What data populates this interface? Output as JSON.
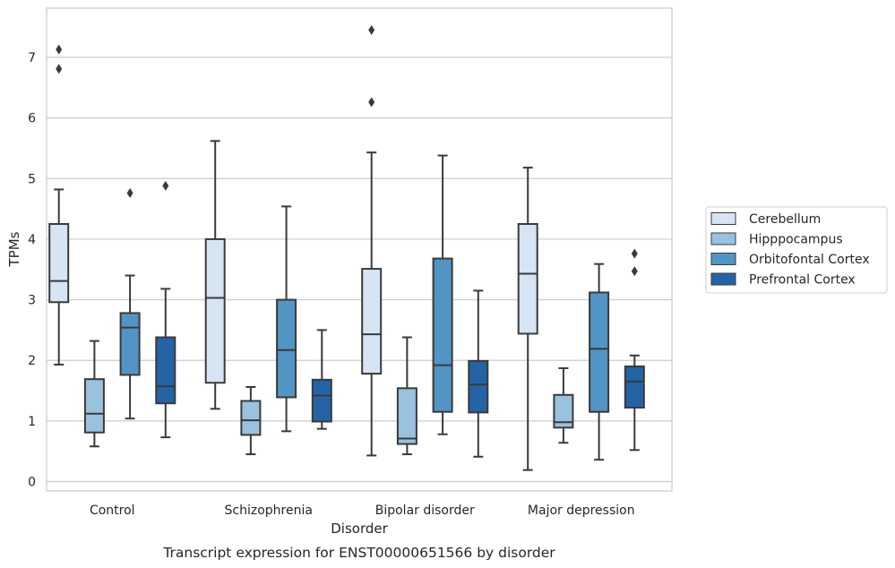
{
  "caption": "Transcript expression for ENST00000651566 by disorder",
  "chart_data": {
    "type": "box",
    "title": "",
    "xlabel": "Disorder",
    "ylabel": "TPMs",
    "ylim": [
      -0.15,
      7.8
    ],
    "yticks": [
      "0",
      "1",
      "2",
      "3",
      "4",
      "5",
      "6",
      "7"
    ],
    "grid": "horizontal",
    "legend_position": "right",
    "categories": [
      "Control",
      "Schizophrenia",
      "Bipolar disorder",
      "Major depression"
    ],
    "series": [
      {
        "name": "Cerebellum",
        "color": "#d6e4f3",
        "boxes": [
          {
            "whisker_low": 1.93,
            "q1": 2.96,
            "median": 3.31,
            "q3": 4.25,
            "whisker_high": 4.82,
            "outliers": [
              6.81,
              7.13
            ]
          },
          {
            "whisker_low": 1.2,
            "q1": 1.63,
            "median": 3.03,
            "q3": 4.0,
            "whisker_high": 5.62,
            "outliers": []
          },
          {
            "whisker_low": 0.43,
            "q1": 1.78,
            "median": 2.43,
            "q3": 3.51,
            "whisker_high": 5.43,
            "outliers": [
              6.26,
              7.45
            ]
          },
          {
            "whisker_low": 0.19,
            "q1": 2.44,
            "median": 3.43,
            "q3": 4.25,
            "whisker_high": 5.18,
            "outliers": []
          }
        ]
      },
      {
        "name": "Hipppocampus",
        "color": "#9ac1dd",
        "boxes": [
          {
            "whisker_low": 0.58,
            "q1": 0.81,
            "median": 1.12,
            "q3": 1.69,
            "whisker_high": 2.32,
            "outliers": []
          },
          {
            "whisker_low": 0.45,
            "q1": 0.77,
            "median": 1.01,
            "q3": 1.33,
            "whisker_high": 1.56,
            "outliers": []
          },
          {
            "whisker_low": 0.45,
            "q1": 0.62,
            "median": 0.71,
            "q3": 1.54,
            "whisker_high": 2.38,
            "outliers": []
          },
          {
            "whisker_low": 0.64,
            "q1": 0.89,
            "median": 0.98,
            "q3": 1.43,
            "whisker_high": 1.87,
            "outliers": []
          }
        ]
      },
      {
        "name": "Orbitofontal Cortex",
        "color": "#5294c4",
        "boxes": [
          {
            "whisker_low": 1.04,
            "q1": 1.76,
            "median": 2.54,
            "q3": 2.78,
            "whisker_high": 3.4,
            "outliers": [
              4.76
            ]
          },
          {
            "whisker_low": 0.83,
            "q1": 1.39,
            "median": 2.17,
            "q3": 3.0,
            "whisker_high": 4.54,
            "outliers": []
          },
          {
            "whisker_low": 0.78,
            "q1": 1.15,
            "median": 1.92,
            "q3": 3.68,
            "whisker_high": 5.38,
            "outliers": []
          },
          {
            "whisker_low": 0.36,
            "q1": 1.15,
            "median": 2.19,
            "q3": 3.12,
            "whisker_high": 3.59,
            "outliers": []
          }
        ]
      },
      {
        "name": "Prefrontal Cortex",
        "color": "#2463a6",
        "boxes": [
          {
            "whisker_low": 0.73,
            "q1": 1.29,
            "median": 1.57,
            "q3": 2.38,
            "whisker_high": 3.18,
            "outliers": [
              4.88
            ]
          },
          {
            "whisker_low": 0.87,
            "q1": 0.99,
            "median": 1.42,
            "q3": 1.68,
            "whisker_high": 2.5,
            "outliers": []
          },
          {
            "whisker_low": 0.41,
            "q1": 1.14,
            "median": 1.6,
            "q3": 1.99,
            "whisker_high": 3.15,
            "outliers": []
          },
          {
            "whisker_low": 0.52,
            "q1": 1.22,
            "median": 1.65,
            "q3": 1.9,
            "whisker_high": 2.08,
            "outliers": [
              3.47,
              3.76
            ]
          }
        ]
      }
    ]
  }
}
